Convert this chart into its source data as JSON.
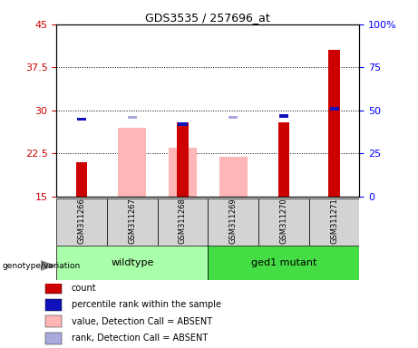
{
  "title": "GDS3535 / 257696_at",
  "samples": [
    "GSM311266",
    "GSM311267",
    "GSM311268",
    "GSM311269",
    "GSM311270",
    "GSM311271"
  ],
  "ylim_left": [
    15,
    45
  ],
  "ylim_right": [
    0,
    100
  ],
  "yticks_left": [
    15,
    22.5,
    30,
    37.5,
    45
  ],
  "yticks_right": [
    0,
    25,
    50,
    75,
    100
  ],
  "ytick_labels_left": [
    "15",
    "22.5",
    "30",
    "37.5",
    "45"
  ],
  "ytick_labels_right": [
    "0",
    "25",
    "50",
    "75",
    "100%"
  ],
  "red_bars": [
    21.0,
    null,
    28.0,
    null,
    28.0,
    40.5
  ],
  "pink_bars": [
    null,
    27.0,
    23.5,
    22.0,
    null,
    null
  ],
  "blue_squares_right": [
    45,
    null,
    42,
    null,
    47,
    51
  ],
  "lightblue_squares_right": [
    null,
    46,
    null,
    46,
    null,
    null
  ],
  "red_color": "#cc0000",
  "pink_color": "#ffb6b6",
  "blue_color": "#1111bb",
  "lightblue_color": "#aaaadd",
  "group_box_color": "#d3d3d3",
  "wildtype_color": "#aaffaa",
  "mutant_color": "#44dd44",
  "plot_bg_color": "#ffffff",
  "outer_bg_color": "#ffffff",
  "legend_items": [
    {
      "label": "count",
      "color": "#cc0000"
    },
    {
      "label": "percentile rank within the sample",
      "color": "#1111bb"
    },
    {
      "label": "value, Detection Call = ABSENT",
      "color": "#ffb6b6"
    },
    {
      "label": "rank, Detection Call = ABSENT",
      "color": "#aaaadd"
    }
  ]
}
